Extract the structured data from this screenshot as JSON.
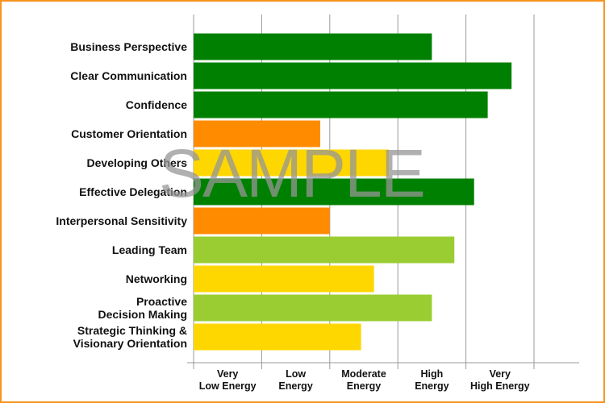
{
  "chart_data": {
    "type": "bar",
    "orientation": "horizontal",
    "categories": [
      "Business Perspective",
      "Clear Communication",
      "Confidence",
      "Customer Orientation",
      "Developing Others",
      "Effective Delegation",
      "Interpersonal Sensitivity",
      "Leading Team",
      "Networking",
      "Proactive\nDecision Making",
      "Strategic Thinking &\nVisionary Orientation"
    ],
    "values": [
      3.5,
      4.67,
      4.32,
      1.86,
      2.87,
      4.12,
      2.0,
      3.83,
      2.65,
      3.5,
      2.46
    ],
    "colors": [
      "#008000",
      "#008000",
      "#008000",
      "#ff8c00",
      "#ffd700",
      "#008000",
      "#ff8c00",
      "#9acd32",
      "#ffd700",
      "#9acd32",
      "#ffd700"
    ],
    "xlim": [
      0,
      5
    ],
    "xticks": [
      0,
      1,
      2,
      3,
      4,
      5
    ],
    "grid": true,
    "levels": [
      "Very\nLow Energy",
      "Low\nEnergy",
      "Moderate\nEnergy",
      "High\nEnergy",
      "Very\nHigh Energy"
    ],
    "watermark": "SAMPLE"
  }
}
